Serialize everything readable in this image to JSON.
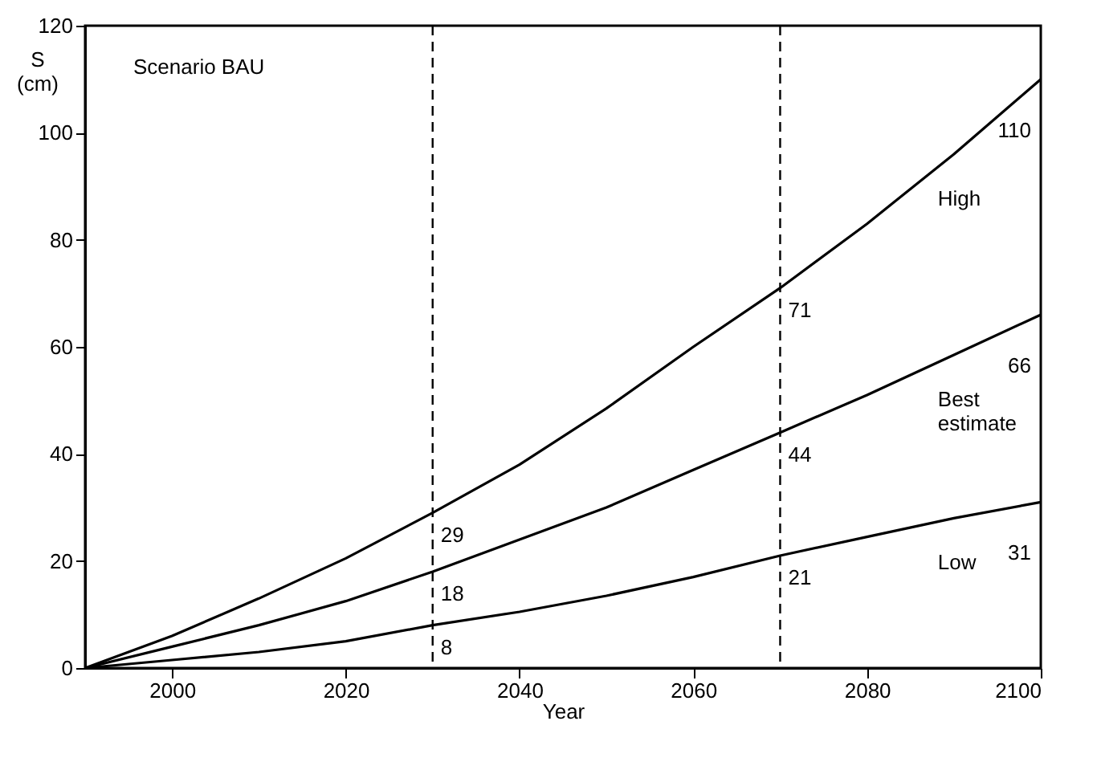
{
  "chart_data": {
    "type": "line",
    "xlabel": "Year",
    "ylabel": "S\n(cm)",
    "x": [
      1990,
      2000,
      2010,
      2020,
      2030,
      2040,
      2050,
      2060,
      2070,
      2080,
      2090,
      2100
    ],
    "xlim": [
      1990,
      2100
    ],
    "xticks": [
      2000,
      2020,
      2040,
      2060,
      2080,
      2100
    ],
    "ylim": [
      0,
      120
    ],
    "yticks": [
      0,
      20,
      40,
      60,
      80,
      100,
      120
    ],
    "grid": false,
    "legend": false,
    "marker": "none",
    "line_style": "solid",
    "annotations": [
      "Scenario BAU"
    ],
    "ref_lines": [
      {
        "axis": "x",
        "value": 2030,
        "line_style": "dashed",
        "color": "#000000"
      },
      {
        "axis": "x",
        "value": 2070,
        "line_style": "dashed",
        "color": "#000000"
      }
    ],
    "series": [
      {
        "name": "High",
        "color": "#000000",
        "values": [
          0,
          6,
          13,
          20.5,
          29,
          38,
          48.5,
          60,
          71,
          83,
          96,
          110
        ],
        "value_labels": [
          null,
          null,
          null,
          null,
          "29",
          null,
          null,
          null,
          "71",
          null,
          null,
          "110"
        ]
      },
      {
        "name": "Best estimate",
        "color": "#000000",
        "values": [
          0,
          4,
          8,
          12.5,
          18,
          24,
          30,
          37,
          44,
          51,
          58.5,
          66
        ],
        "value_labels": [
          null,
          null,
          null,
          null,
          "18",
          null,
          null,
          null,
          "44",
          null,
          null,
          "66"
        ]
      },
      {
        "name": "Low",
        "color": "#000000",
        "values": [
          0,
          1.5,
          3,
          5,
          8,
          10.5,
          13.5,
          17,
          21,
          24.5,
          28,
          31
        ],
        "value_labels": [
          null,
          null,
          null,
          null,
          "8",
          null,
          null,
          null,
          "21",
          null,
          null,
          "31"
        ]
      }
    ]
  }
}
